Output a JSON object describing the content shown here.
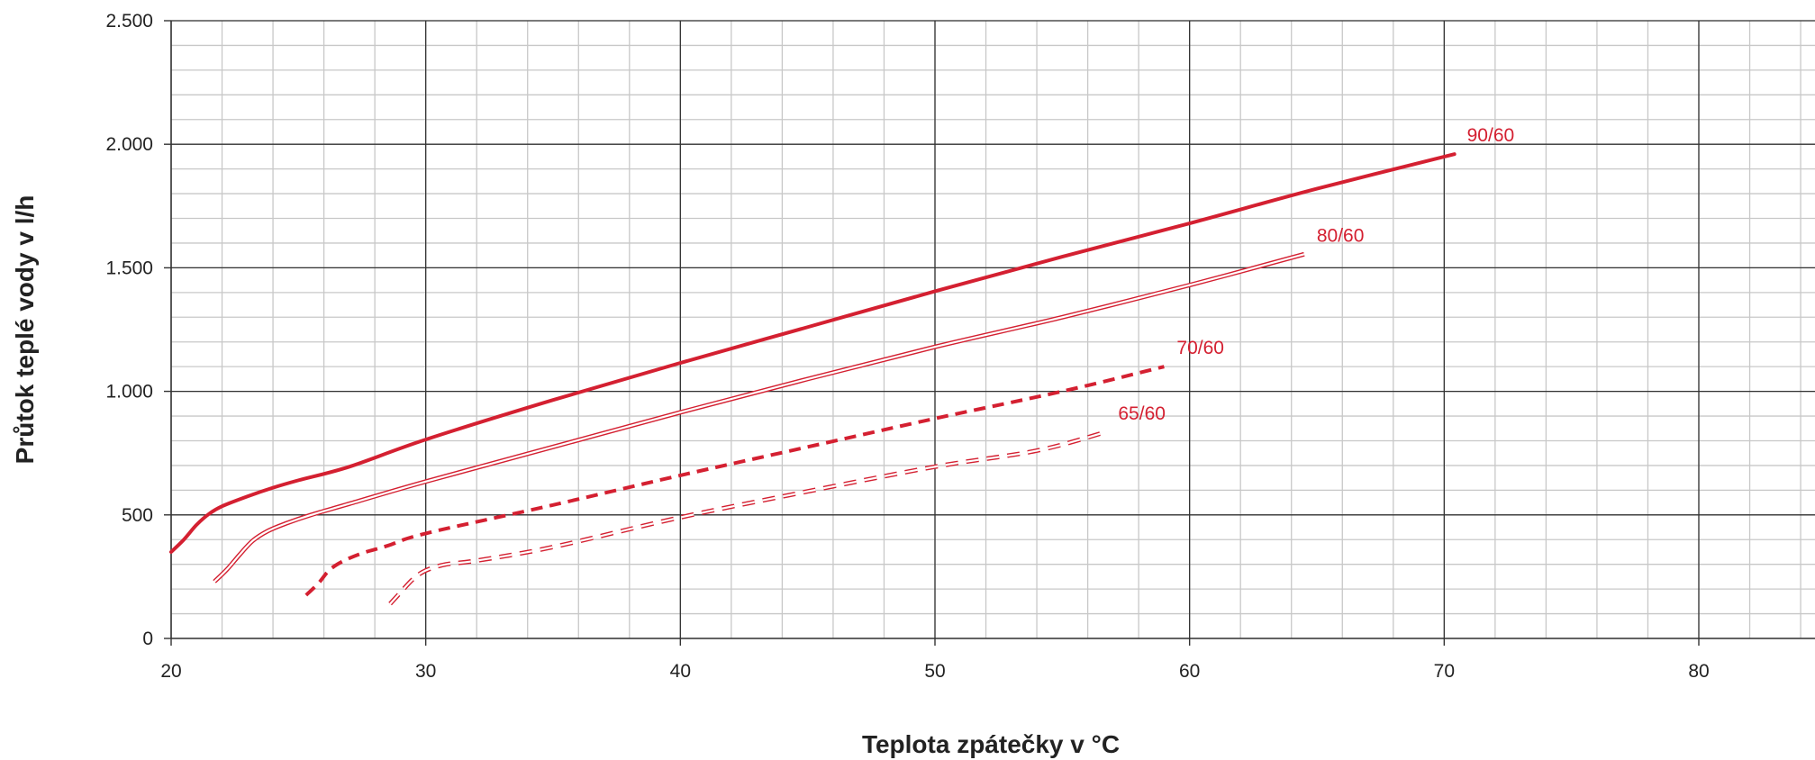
{
  "chart_data": {
    "type": "line",
    "title": "",
    "xlabel": "Teplota zpátečky v °C",
    "ylabel": "Průtok teplé vody v l/h",
    "xlim": [
      20,
      85
    ],
    "ylim": [
      0,
      2500
    ],
    "x_major_step": 10,
    "x_minor_step": 2,
    "y_major_step": 500,
    "y_minor_step": 100,
    "grid": true,
    "x_ticks": [
      {
        "value": 20,
        "label": "20"
      },
      {
        "value": 30,
        "label": "30"
      },
      {
        "value": 40,
        "label": "40"
      },
      {
        "value": 50,
        "label": "50"
      },
      {
        "value": 60,
        "label": "60"
      },
      {
        "value": 70,
        "label": "70"
      },
      {
        "value": 80,
        "label": "80"
      }
    ],
    "y_ticks": [
      {
        "value": 0,
        "label": "0"
      },
      {
        "value": 500,
        "label": "500"
      },
      {
        "value": 1000,
        "label": "1.000"
      },
      {
        "value": 1500,
        "label": "1.500"
      },
      {
        "value": 2000,
        "label": "2.000"
      },
      {
        "value": 2500,
        "label": "2.500"
      }
    ],
    "line_color": "#d42031",
    "series": [
      {
        "name": "90/60",
        "style": "solid-thick",
        "points": [
          [
            20,
            350
          ],
          [
            20.5,
            400
          ],
          [
            21,
            460
          ],
          [
            21.5,
            505
          ],
          [
            22,
            535
          ],
          [
            23,
            575
          ],
          [
            24,
            610
          ],
          [
            25,
            640
          ],
          [
            27,
            695
          ],
          [
            30,
            805
          ],
          [
            35,
            965
          ],
          [
            40,
            1115
          ],
          [
            45,
            1260
          ],
          [
            50,
            1405
          ],
          [
            55,
            1545
          ],
          [
            60,
            1680
          ],
          [
            65,
            1820
          ],
          [
            70.4,
            1960
          ]
        ]
      },
      {
        "name": "80/60",
        "style": "double",
        "points": [
          [
            21.7,
            230
          ],
          [
            22.2,
            280
          ],
          [
            22.7,
            340
          ],
          [
            23.2,
            395
          ],
          [
            23.8,
            435
          ],
          [
            24.5,
            465
          ],
          [
            25.5,
            500
          ],
          [
            27,
            545
          ],
          [
            30,
            635
          ],
          [
            35,
            775
          ],
          [
            40,
            915
          ],
          [
            45,
            1050
          ],
          [
            50,
            1180
          ],
          [
            55,
            1300
          ],
          [
            60,
            1430
          ],
          [
            64.5,
            1555
          ]
        ]
      },
      {
        "name": "70/60",
        "style": "dashed-thick",
        "points": [
          [
            25.3,
            175
          ],
          [
            25.8,
            225
          ],
          [
            26.2,
            275
          ],
          [
            26.7,
            310
          ],
          [
            27.5,
            345
          ],
          [
            28.5,
            375
          ],
          [
            30,
            425
          ],
          [
            35,
            540
          ],
          [
            40,
            660
          ],
          [
            45,
            775
          ],
          [
            50,
            890
          ],
          [
            55,
            1000
          ],
          [
            59,
            1100
          ]
        ]
      },
      {
        "name": "65/60",
        "style": "dashed-double",
        "points": [
          [
            28.6,
            140
          ],
          [
            29,
            185
          ],
          [
            29.5,
            240
          ],
          [
            30,
            275
          ],
          [
            30.8,
            300
          ],
          [
            32,
            315
          ],
          [
            35,
            370
          ],
          [
            40,
            490
          ],
          [
            45,
            595
          ],
          [
            50,
            695
          ],
          [
            54,
            760
          ],
          [
            56.7,
            835
          ]
        ]
      }
    ]
  }
}
